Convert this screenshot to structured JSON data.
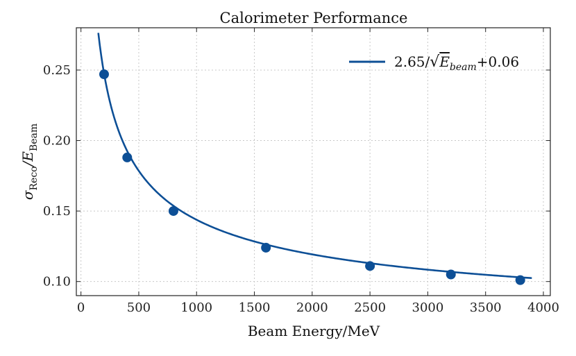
{
  "chart_data": {
    "type": "scatter",
    "title": "Calorimeter Performance",
    "xlabel": "Beam Energy/MeV",
    "ylabel": "σReco/EBeam",
    "ylabel_parts": {
      "sigma": "σ",
      "sigma_sub": "Reco",
      "slash_E": "/E",
      "E_sub": "Beam"
    },
    "xlim": [
      -40,
      4060
    ],
    "ylim": [
      0.09,
      0.28
    ],
    "xticks": [
      0,
      500,
      1000,
      1500,
      2000,
      2500,
      3000,
      3500,
      4000
    ],
    "yticks": [
      0.1,
      0.15,
      0.2,
      0.25
    ],
    "ytick_labels": [
      "0.10",
      "0.15",
      "0.20",
      "0.25"
    ],
    "grid": true,
    "color": "#0d4f96",
    "points": {
      "x": [
        200,
        400,
        800,
        1600,
        2500,
        3200,
        3800
      ],
      "y": [
        0.247,
        0.188,
        0.15,
        0.124,
        0.111,
        0.105,
        0.101
      ]
    },
    "fit": {
      "a": 2.65,
      "b": 0.06,
      "x_range": [
        150,
        3900
      ],
      "legend_label": "2.65/√Ebeam+0.06",
      "legend_parts": {
        "coef": "2.65/",
        "sqrt": "√",
        "E": "E",
        "E_sub": "beam",
        "const": "+0.06"
      },
      "legend_position": "top-right"
    }
  }
}
